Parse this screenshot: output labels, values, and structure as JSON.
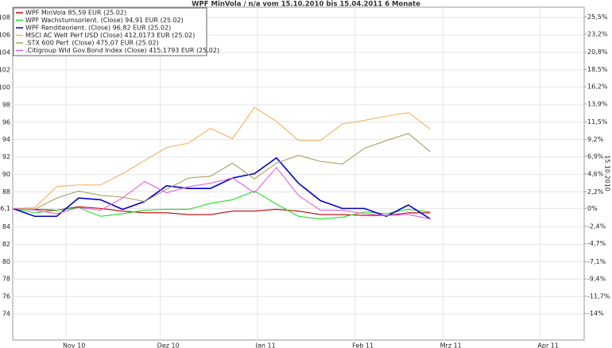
{
  "chart_data": {
    "type": "line",
    "title": "WPF MinVola / n/a vom 15.10.2010 bis 15.04.2011 6 Monate",
    "y2_label": "15.10.2010",
    "xlim": [
      0,
      182
    ],
    "xticks": [
      {
        "value": 17,
        "label": "Nov 10"
      },
      {
        "value": 47,
        "label": "Dez 10"
      },
      {
        "value": 78,
        "label": "Jan 11"
      },
      {
        "value": 109,
        "label": "Feb 11"
      },
      {
        "value": 137,
        "label": "Mrz 11"
      },
      {
        "value": 168,
        "label": "Apr 11"
      }
    ],
    "ylim": [
      71,
      109.2
    ],
    "yticks": [
      74,
      76,
      78,
      80,
      82,
      84,
      {
        "value": 86.1,
        "label": "86,1"
      },
      88,
      90,
      92,
      94,
      96,
      98,
      100,
      102,
      104,
      106,
      108
    ],
    "y2lim": [
      -17.54,
      26.8
    ],
    "y2ticks": [
      {
        "value": 25.5,
        "label": "25,5%"
      },
      {
        "value": 23.2,
        "label": "23,2%"
      },
      {
        "value": 20.8,
        "label": "20,8%"
      },
      {
        "value": 18.5,
        "label": "18,5%"
      },
      {
        "value": 16.2,
        "label": "16,2%"
      },
      {
        "value": 13.9,
        "label": "13,9%"
      },
      {
        "value": 11.5,
        "label": "11,5%"
      },
      {
        "value": 9.2,
        "label": "9,2%"
      },
      {
        "value": 6.9,
        "label": "6,9%"
      },
      {
        "value": 4.6,
        "label": "4,6%"
      },
      {
        "value": 2.2,
        "label": "2,2%"
      },
      {
        "value": 0,
        "label": "0%"
      },
      {
        "value": -2.4,
        "label": "-2,4%"
      },
      {
        "value": -4.7,
        "label": "-4,7%"
      },
      {
        "value": -7.1,
        "label": "-7,1%"
      },
      {
        "value": -9.4,
        "label": "-9,4%"
      },
      {
        "value": -11.7,
        "label": "-11,7%"
      },
      {
        "value": -14,
        "label": "-14%"
      }
    ],
    "grid": true,
    "legend": "top-left",
    "x": [
      0,
      7,
      14,
      21,
      28,
      35,
      42,
      49,
      56,
      63,
      70,
      77,
      84,
      91,
      98,
      105,
      112,
      119,
      126,
      133
    ],
    "series": [
      {
        "name": "WPF MinVola 85,59 EUR (25.02)",
        "color": "#c00000",
        "values": [
          86.1,
          86.0,
          85.9,
          86.3,
          86.1,
          85.8,
          85.6,
          85.6,
          85.4,
          85.4,
          85.8,
          85.8,
          86.0,
          85.8,
          85.4,
          85.4,
          85.3,
          85.3,
          85.6,
          85.59
        ]
      },
      {
        "name": "WPF Wachstumsorient. (Close) 94,91 EUR (25.02)",
        "color": "#22dd22",
        "values": [
          86.1,
          85.6,
          85.9,
          86.2,
          85.2,
          85.5,
          85.9,
          86.0,
          86.0,
          86.7,
          87.1,
          88.1,
          86.6,
          85.2,
          84.9,
          85.1,
          85.7,
          85.5,
          86.0,
          85.7
        ]
      },
      {
        "name": "WPF Renditeorient. (Close) 96,82 EUR (25.02)",
        "color": "#0000cc",
        "values": [
          86.1,
          85.2,
          85.2,
          87.3,
          87.1,
          86.0,
          86.9,
          88.7,
          88.4,
          88.4,
          89.6,
          90.1,
          91.9,
          89.0,
          87.0,
          86.1,
          86.1,
          85.2,
          86.5,
          84.9
        ]
      },
      {
        "name": "MSCI AC Welt Perf USD (Close) 412,0173 EUR (25.02)",
        "color": "#f5b060",
        "values": [
          86.1,
          86.2,
          88.6,
          88.8,
          88.8,
          90.1,
          91.6,
          93.1,
          93.6,
          95.3,
          94.1,
          97.7,
          96.1,
          93.9,
          93.9,
          95.8,
          96.2,
          96.7,
          97.1,
          95.2
        ]
      },
      {
        "name": ".STX 600 Perf. (Close) 475,07 EUR (25.02)",
        "color": "#a8a060",
        "values": [
          86.1,
          86.0,
          87.3,
          88.1,
          87.6,
          87.4,
          86.9,
          88.3,
          89.6,
          89.8,
          91.3,
          89.5,
          91.3,
          92.2,
          91.5,
          91.2,
          93.0,
          93.9,
          94.7,
          92.6
        ]
      },
      {
        "name": ".Citigroup Wld Gov.Bond Index (Close) 415,1793 EUR (25.02)",
        "color": "#e060e0",
        "values": [
          86.1,
          85.9,
          85.5,
          86.2,
          85.9,
          87.3,
          89.2,
          87.9,
          88.6,
          89.0,
          89.6,
          87.9,
          90.8,
          87.6,
          85.9,
          85.9,
          85.5,
          85.3,
          85.4,
          84.9
        ]
      }
    ]
  }
}
